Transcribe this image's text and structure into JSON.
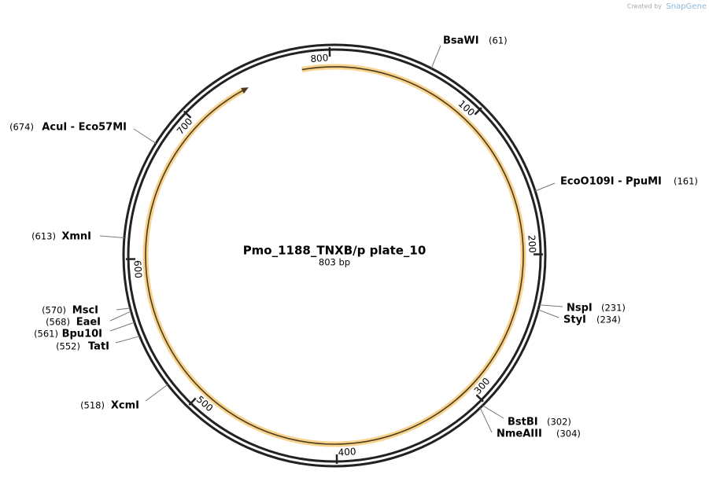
{
  "branding": {
    "created_by": "Created by",
    "brand": "SnapGene"
  },
  "map": {
    "title": "Pmo_1188_TNXB/p plate_10",
    "length": 803,
    "length_label": "803 bp",
    "ticks": [
      100,
      200,
      300,
      400,
      500,
      600,
      700,
      800
    ],
    "sites": [
      {
        "name": "BsaWI",
        "position": 61,
        "label": "(61)"
      },
      {
        "name": "EcoO109I - PpuMI",
        "position": 161,
        "label": "(161)"
      },
      {
        "name": "NspI",
        "position": 231,
        "label": "(231)"
      },
      {
        "name": "StyI",
        "position": 234,
        "label": "(234)"
      },
      {
        "name": "BstBI",
        "position": 302,
        "label": "(302)"
      },
      {
        "name": "NmeAIII",
        "position": 304,
        "label": "(304)"
      },
      {
        "name": "XcmI",
        "position": 518,
        "label": "(518)"
      },
      {
        "name": "TatI",
        "position": 552,
        "label": "(552)"
      },
      {
        "name": "Bpu10I",
        "position": 561,
        "label": "(561)"
      },
      {
        "name": "EaeI",
        "position": 568,
        "label": "(568)"
      },
      {
        "name": "MscI",
        "position": 570,
        "label": "(570)"
      },
      {
        "name": "XmnI",
        "position": 613,
        "label": "(613)"
      },
      {
        "name": "AcuI - Eco57MI",
        "position": 674,
        "label": "(674)"
      }
    ]
  }
}
